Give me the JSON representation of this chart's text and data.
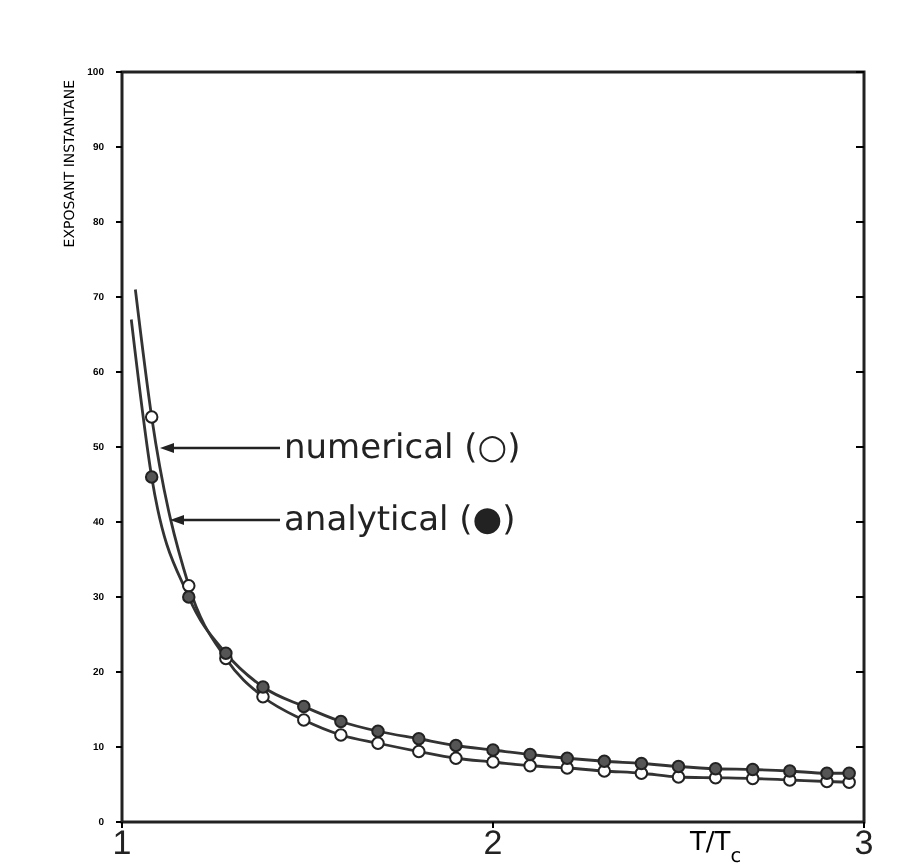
{
  "chart_data": {
    "type": "line",
    "xlabel": "T/T$_{c}$",
    "ylabel": "EXPOSANT INSTANTANE",
    "xlim": [
      1,
      3
    ],
    "xticks": [
      1,
      2,
      3
    ],
    "ylim": [
      0,
      100
    ],
    "yticks": [
      0,
      10,
      20,
      30,
      40,
      50,
      60,
      70,
      80,
      90,
      100
    ],
    "grid": false,
    "marker": "none",
    "line_style": "solid",
    "series": [
      {
        "color": "#333333",
        "x": [
          1.036,
          1.08,
          1.18,
          1.28,
          1.38,
          1.49,
          1.59,
          1.69,
          1.8,
          1.9,
          2.0,
          2.1,
          2.2,
          2.3,
          2.4,
          2.5,
          2.6,
          2.7,
          2.8,
          2.9,
          2.96
        ],
        "values": [
          71,
          54,
          31.5,
          21.8,
          16.7,
          13.6,
          11.6,
          10.5,
          9.4,
          8.5,
          8.0,
          7.5,
          7.2,
          6.8,
          6.5,
          6.0,
          5.9,
          5.8,
          5.6,
          5.4,
          5.3
        ]
      },
      {
        "color": "#333333",
        "x": [
          1.025,
          1.08,
          1.18,
          1.28,
          1.38,
          1.49,
          1.59,
          1.69,
          1.8,
          1.9,
          2.0,
          2.1,
          2.2,
          2.3,
          2.4,
          2.5,
          2.6,
          2.7,
          2.8,
          2.9,
          2.96
        ],
        "values": [
          67,
          46,
          30,
          22.5,
          18.0,
          15.4,
          13.4,
          12.1,
          11.1,
          10.2,
          9.6,
          9.0,
          8.5,
          8.1,
          7.8,
          7.4,
          7.1,
          7.0,
          6.8,
          6.5,
          6.5
        ]
      },
      {
        "type": "scatter",
        "marker": "circle",
        "color": "#ffffff",
        "x": [
          1.08,
          1.18,
          1.28,
          1.38,
          1.49,
          1.59,
          1.69,
          1.8,
          1.9,
          2.0,
          2.1,
          2.2,
          2.3,
          2.4,
          2.5,
          2.6,
          2.7,
          2.8,
          2.9,
          2.96
        ],
        "values": [
          54,
          31.5,
          21.8,
          16.7,
          13.6,
          11.6,
          10.5,
          9.4,
          8.5,
          8.0,
          7.5,
          7.2,
          6.8,
          6.5,
          6.0,
          5.9,
          5.8,
          5.6,
          5.4,
          5.3
        ]
      },
      {
        "type": "scatter",
        "marker": "circle",
        "color": "#555555",
        "x": [
          1.08,
          1.18,
          1.28,
          1.38,
          1.49,
          1.59,
          1.69,
          1.8,
          1.9,
          2.0,
          2.1,
          2.2,
          2.3,
          2.4,
          2.5,
          2.6,
          2.7,
          2.8,
          2.9,
          2.96
        ],
        "values": [
          46,
          30,
          22.5,
          18.0,
          15.4,
          13.4,
          12.1,
          11.1,
          10.2,
          9.6,
          9.0,
          8.5,
          8.1,
          7.8,
          7.4,
          7.1,
          7.0,
          6.8,
          6.5,
          6.5
        ]
      }
    ],
    "annotations": [
      "numerical (○)",
      "analytical (●)"
    ]
  }
}
